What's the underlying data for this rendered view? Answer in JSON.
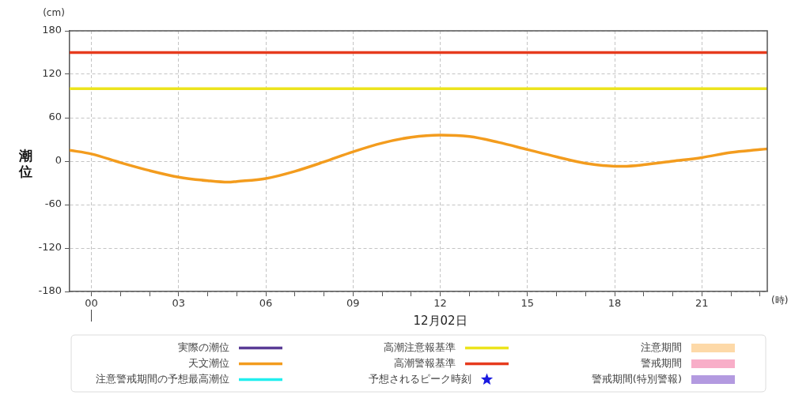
{
  "chart_data": {
    "type": "line",
    "xlabel": "(時)",
    "ylabel": "潮位",
    "annotations": [
      "(cm)",
      "12月02日"
    ],
    "series": [
      {
        "name": "実際の潮位",
        "type": "line",
        "color": "#5a3c96"
      },
      {
        "name": "天文潮位",
        "type": "line",
        "color": "#f39c1e",
        "x": [
          -0.75,
          0,
          1,
          2,
          3,
          4,
          4.7,
          5,
          6,
          7,
          8,
          9,
          10,
          11,
          12,
          13,
          14,
          15,
          16,
          17,
          18,
          18.3,
          19,
          20,
          21,
          22,
          23,
          23.25
        ],
        "values": [
          15,
          10,
          -2,
          -13,
          -22,
          -27,
          -29,
          -28,
          -24,
          -14,
          -1,
          13,
          25,
          33,
          36,
          34,
          26,
          16,
          6,
          -3,
          -7,
          -7,
          -5,
          0,
          5,
          12,
          16,
          17
        ]
      },
      {
        "name": "注意警戒期間の予想最高潮位",
        "type": "line",
        "color": "#22eeee"
      },
      {
        "name": "予想されるピーク時刻",
        "type": "scatter",
        "marker": "star",
        "color": "#1a1ae0"
      },
      {
        "name": "注意期間",
        "type": "area",
        "color": "#fdd9a8"
      },
      {
        "name": "警戒期間",
        "type": "area",
        "color": "#f8aec8"
      },
      {
        "name": "警戒期間(特別警報)",
        "type": "area",
        "color": "#b39ae0"
      }
    ],
    "ref_lines": [
      {
        "axis": "y",
        "value": 100,
        "label": "高潮注意報基準",
        "color": "#ece41c"
      },
      {
        "axis": "y",
        "value": 150,
        "label": "高潮警報基準",
        "color": "#e63b1e"
      }
    ],
    "xlim": [
      -0.75,
      23.25
    ],
    "xticks": [
      {
        "value": 0,
        "label": "00"
      },
      {
        "value": 1,
        "label": null
      },
      {
        "value": 2,
        "label": null
      },
      {
        "value": 3,
        "label": "03"
      },
      {
        "value": 4,
        "label": null
      },
      {
        "value": 5,
        "label": null
      },
      {
        "value": 6,
        "label": "06"
      },
      {
        "value": 7,
        "label": null
      },
      {
        "value": 8,
        "label": null
      },
      {
        "value": 9,
        "label": "09"
      },
      {
        "value": 10,
        "label": null
      },
      {
        "value": 11,
        "label": null
      },
      {
        "value": 12,
        "label": "12"
      },
      {
        "value": 13,
        "label": null
      },
      {
        "value": 14,
        "label": null
      },
      {
        "value": 15,
        "label": "15"
      },
      {
        "value": 16,
        "label": null
      },
      {
        "value": 17,
        "label": null
      },
      {
        "value": 18,
        "label": "18"
      },
      {
        "value": 19,
        "label": null
      },
      {
        "value": 20,
        "label": null
      },
      {
        "value": 21,
        "label": "21"
      },
      {
        "value": 22,
        "label": null
      },
      {
        "value": 23,
        "label": null
      }
    ],
    "ylim": [
      -180,
      180
    ],
    "yticks": [
      -180,
      -120,
      -60,
      0,
      60,
      120,
      180
    ],
    "grid": true,
    "legend": "bottom"
  }
}
